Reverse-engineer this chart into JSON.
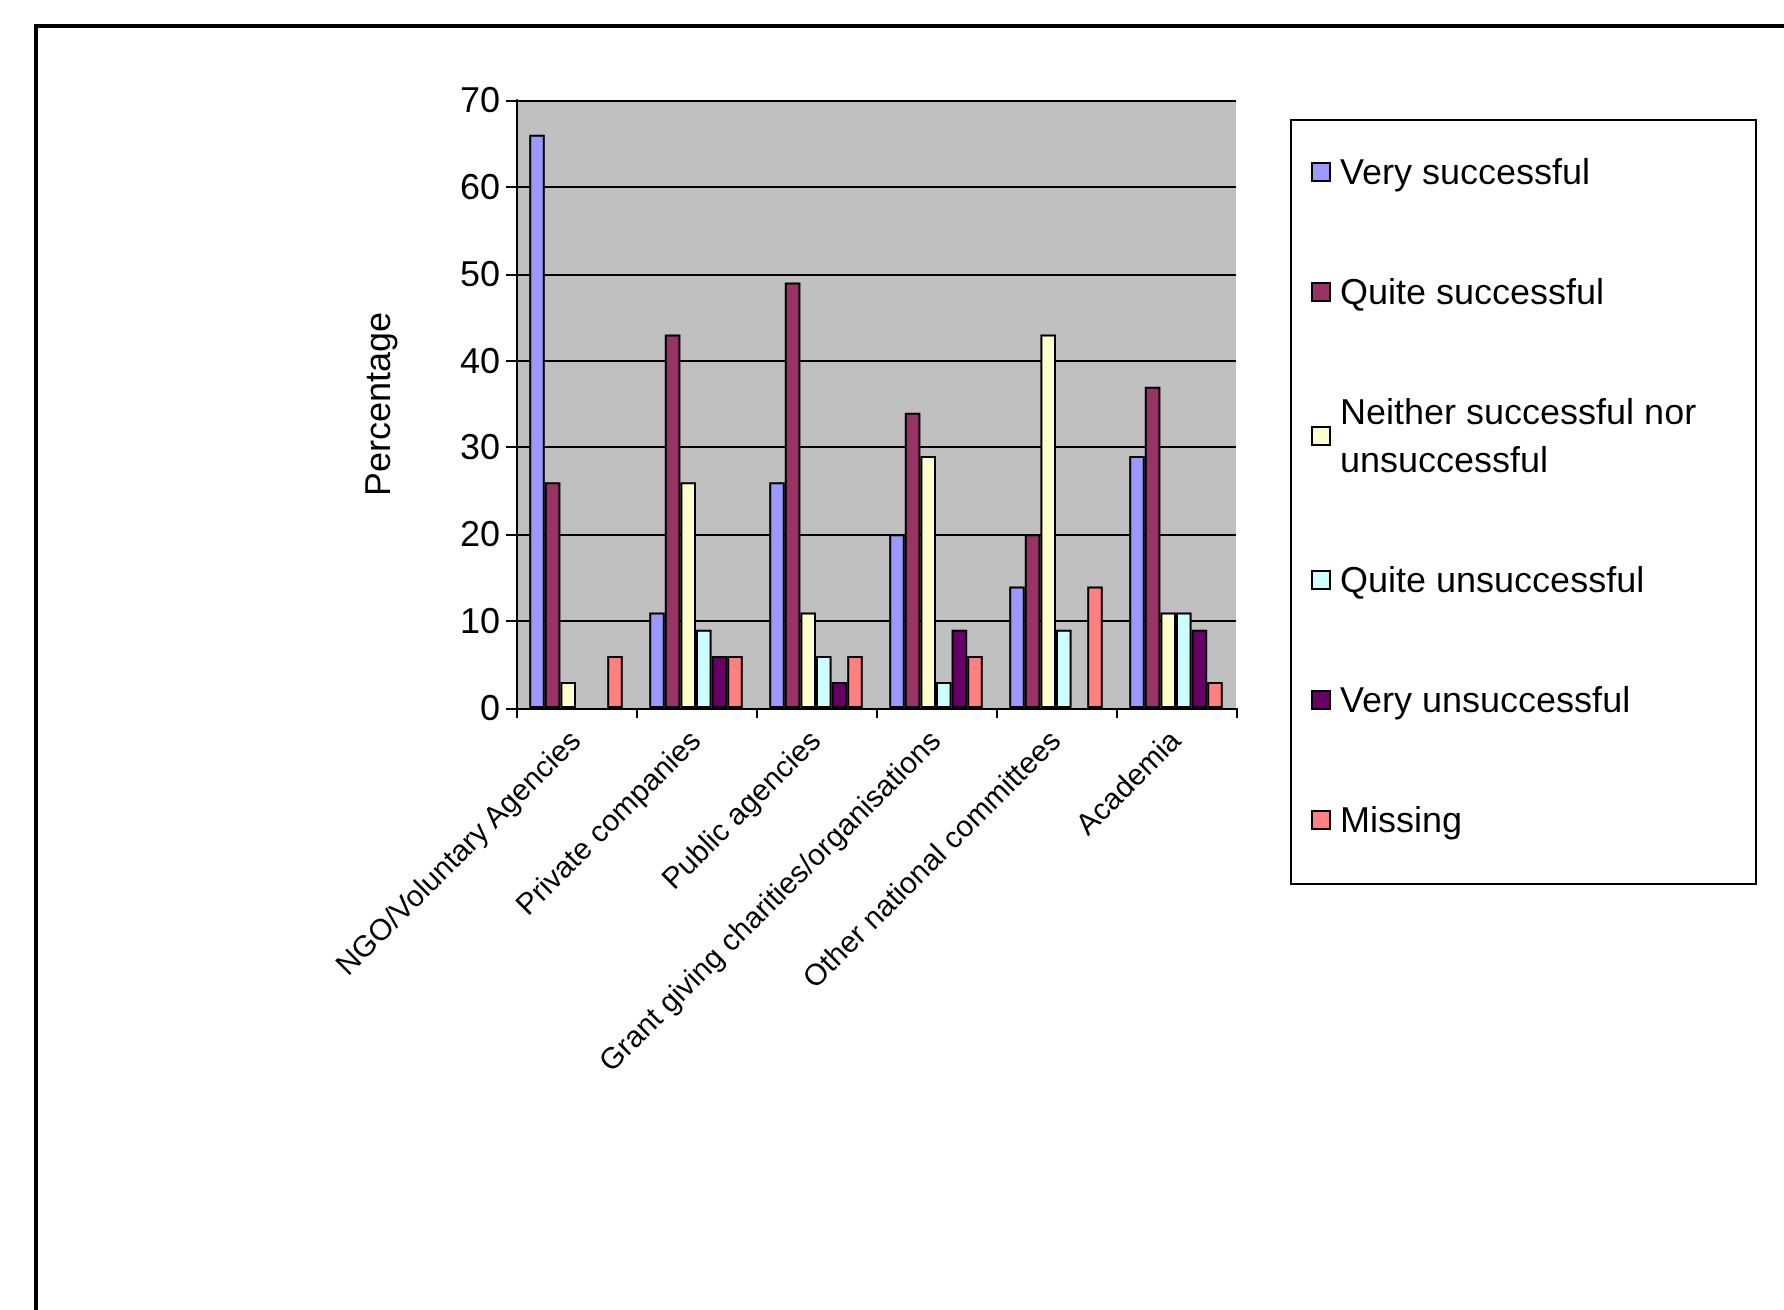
{
  "chart_data": {
    "type": "bar",
    "ylabel": "Percentage",
    "categories": [
      "NGO/Voluntary Agencies",
      "Private companies",
      "Public agencies",
      "Grant giving charities/organisations",
      "Other national committees",
      "Academia"
    ],
    "series": [
      {
        "name": "Very successful",
        "color": "#9999ff",
        "values": [
          66,
          11,
          26,
          20,
          14,
          29
        ]
      },
      {
        "name": "Quite successful",
        "color": "#993366",
        "values": [
          26,
          43,
          49,
          34,
          20,
          37
        ]
      },
      {
        "name": "Neither successful nor unsuccessful",
        "color": "#ffffcc",
        "values": [
          3,
          26,
          11,
          29,
          43,
          11
        ]
      },
      {
        "name": "Quite unsuccessful",
        "color": "#ccffff",
        "values": [
          null,
          9,
          6,
          3,
          9,
          11
        ]
      },
      {
        "name": "Very unsuccessful",
        "color": "#660066",
        "values": [
          null,
          6,
          3,
          9,
          null,
          9
        ]
      },
      {
        "name": "Missing",
        "color": "#ff8080",
        "values": [
          6,
          6,
          6,
          6,
          14,
          3
        ]
      }
    ],
    "ylim": [
      0,
      70
    ],
    "yticks": [
      0,
      10,
      20,
      30,
      40,
      50,
      60,
      70
    ],
    "grid": "y",
    "legend": "right"
  }
}
